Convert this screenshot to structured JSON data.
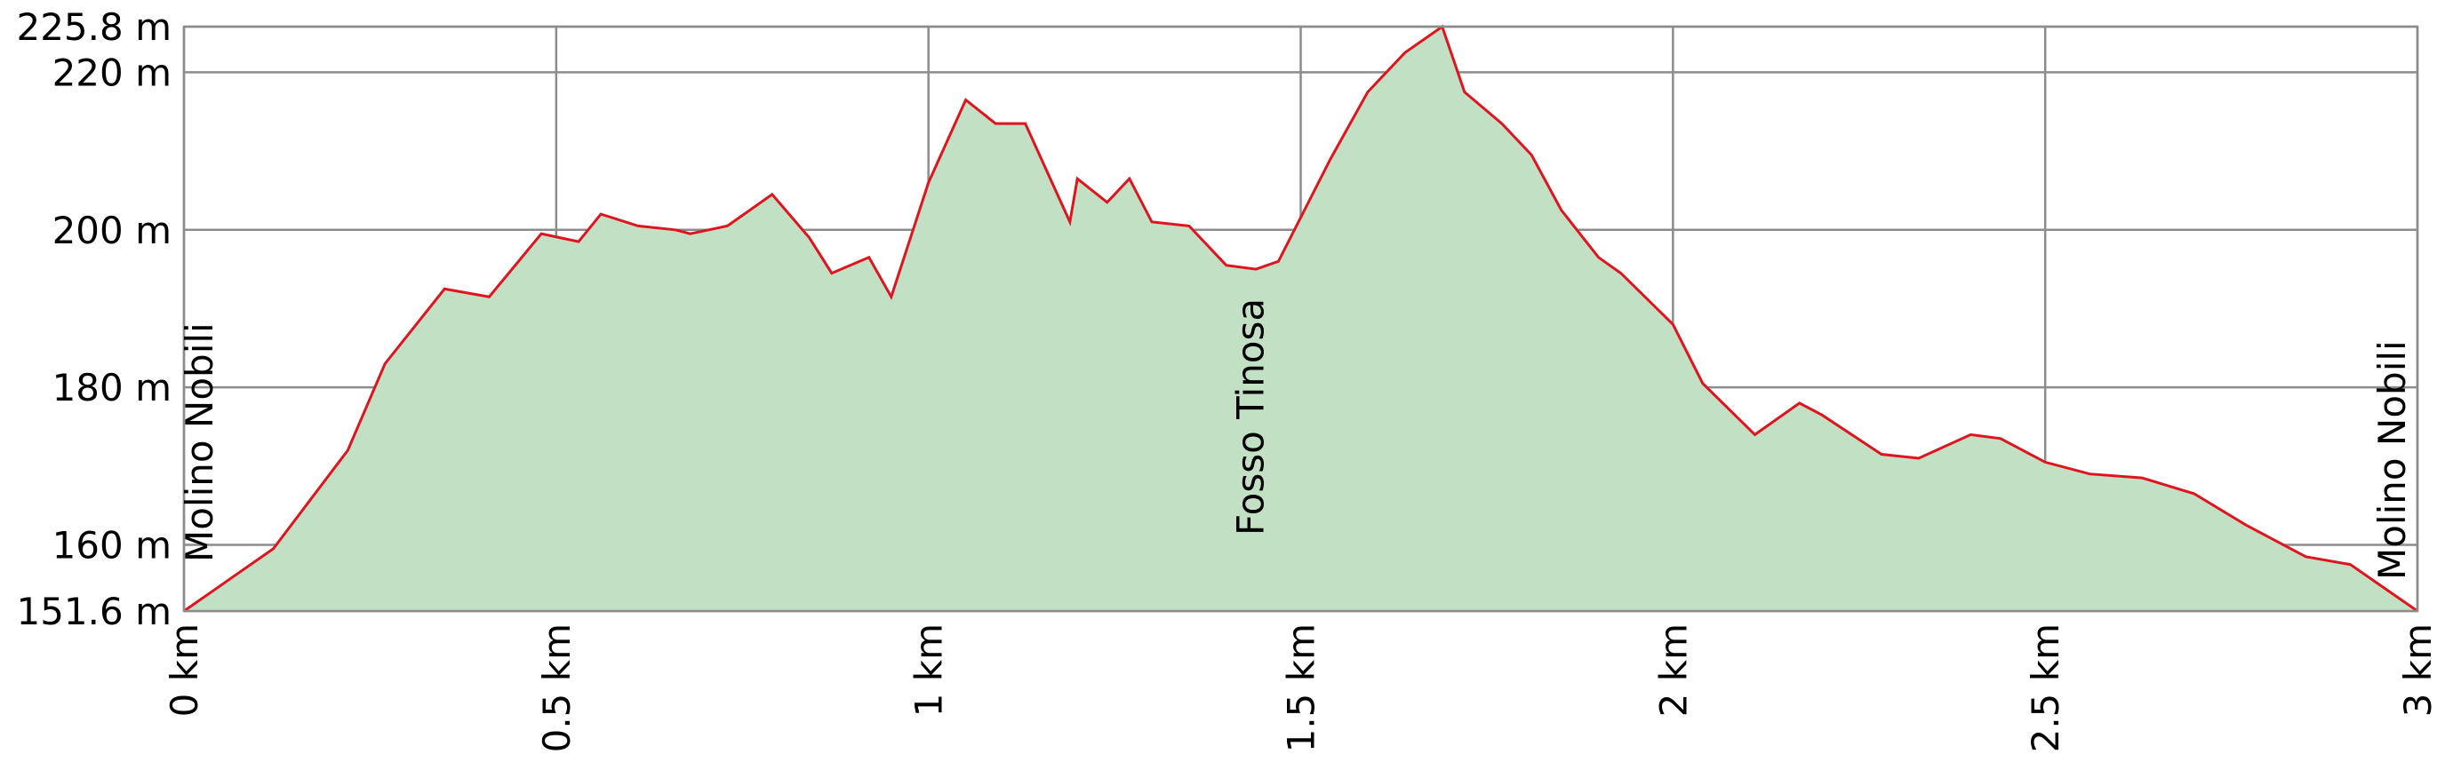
{
  "chart_data": {
    "type": "area",
    "title": "",
    "xlabel": "",
    "ylabel": "",
    "xlim": [
      0,
      3
    ],
    "ylim": [
      151.6,
      225.8
    ],
    "grid": true,
    "x_ticks": [
      {
        "value": 0,
        "label": "0 km"
      },
      {
        "value": 0.5,
        "label": "0.5 km"
      },
      {
        "value": 1,
        "label": "1 km"
      },
      {
        "value": 1.5,
        "label": "1.5 km"
      },
      {
        "value": 2,
        "label": "2 km"
      },
      {
        "value": 2.5,
        "label": "2.5 km"
      },
      {
        "value": 3,
        "label": "3 km"
      }
    ],
    "y_ticks": [
      {
        "value": 151.6,
        "label": "151.6 m"
      },
      {
        "value": 160,
        "label": "160 m"
      },
      {
        "value": 180,
        "label": "180 m"
      },
      {
        "value": 200,
        "label": "200 m"
      },
      {
        "value": 220,
        "label": "220 m"
      },
      {
        "value": 225.8,
        "label": "225.8 m"
      }
    ],
    "annotations": [
      {
        "x": 0,
        "text": "Molino Nobili"
      },
      {
        "x": 1.45,
        "text": "Fosso Tinosa"
      },
      {
        "x": 3,
        "text": "Molino Nobili"
      }
    ],
    "colors": {
      "line": "#e0141e",
      "fill": "#c2e0c4",
      "grid": "#8c8c8c"
    },
    "series": [
      {
        "x": [
          0,
          0.12,
          0.22,
          0.27,
          0.35,
          0.41,
          0.48,
          0.53,
          0.56,
          0.61,
          0.66,
          0.68,
          0.73,
          0.79,
          0.84,
          0.87,
          0.92,
          0.95,
          1.0,
          1.05,
          1.09,
          1.13,
          1.19,
          1.2,
          1.24,
          1.27,
          1.3,
          1.35,
          1.4,
          1.44,
          1.47,
          1.54,
          1.59,
          1.64,
          1.69,
          1.72,
          1.77,
          1.81,
          1.85,
          1.9,
          1.93,
          2.0,
          2.04,
          2.11,
          2.17,
          2.2,
          2.28,
          2.33,
          2.4,
          2.44,
          2.5,
          2.56,
          2.63,
          2.7,
          2.77,
          2.85,
          2.91,
          3.0
        ],
        "y": [
          151.6,
          159.5,
          172.0,
          183.0,
          192.5,
          191.5,
          199.5,
          198.5,
          202.0,
          200.5,
          200.0,
          199.5,
          200.5,
          204.5,
          199.0,
          194.5,
          196.5,
          191.5,
          206.0,
          216.5,
          213.5,
          213.5,
          201.0,
          206.5,
          203.5,
          206.5,
          201.0,
          200.5,
          195.5,
          195.0,
          196.0,
          209.0,
          217.5,
          222.5,
          225.8,
          217.5,
          213.5,
          209.5,
          202.5,
          196.5,
          194.5,
          188.0,
          180.5,
          174.0,
          178.0,
          176.5,
          171.5,
          171.0,
          174.0,
          173.5,
          170.5,
          169.0,
          168.5,
          166.5,
          162.5,
          158.5,
          157.5,
          151.6
        ]
      }
    ]
  }
}
